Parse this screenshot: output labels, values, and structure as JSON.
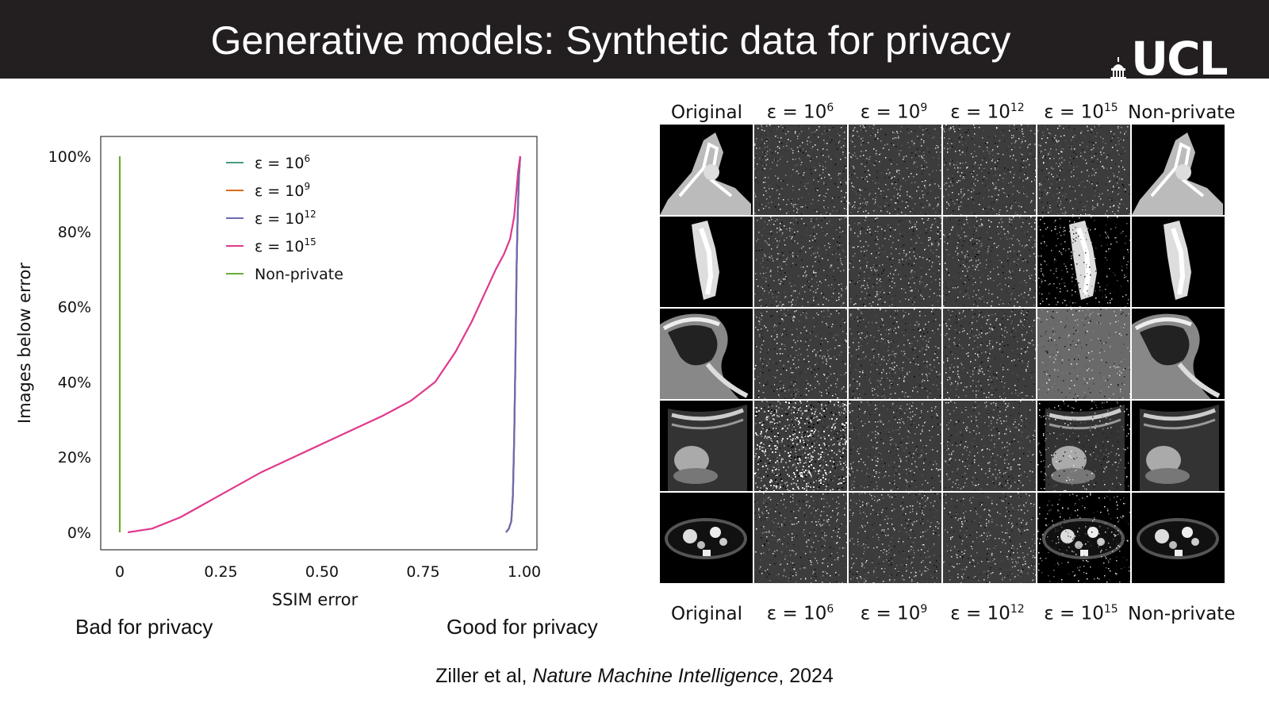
{
  "slide": {
    "title": "Generative models: Synthetic data for privacy",
    "logo_text": "UCL",
    "bad_label": "Bad for privacy",
    "good_label": "Good for privacy",
    "citation_authors": "Ziller et al, ",
    "citation_journal": "Nature Machine Intelligence",
    "citation_year": ", 2024"
  },
  "chart_data": {
    "type": "line",
    "xlabel": "SSIM error",
    "ylabel": "Images below error",
    "xlim": [
      0,
      1.0
    ],
    "ylim": [
      0,
      100
    ],
    "xticks": [
      0,
      0.25,
      0.5,
      0.75,
      1.0
    ],
    "xtick_labels": [
      "0",
      "0.25",
      "0.50",
      "0.75",
      "1.00"
    ],
    "yticks": [
      0,
      20,
      40,
      60,
      80,
      100
    ],
    "ytick_labels": [
      "0%",
      "20%",
      "40%",
      "60%",
      "80%",
      "100%"
    ],
    "legend_position": "top-center",
    "series": [
      {
        "name_base": "ε = 10",
        "name_exp": "6",
        "color": "#4a9a7e",
        "x": [
          0.955,
          0.962,
          0.968,
          0.972,
          0.975,
          0.978,
          0.981,
          0.984,
          0.987,
          0.99
        ],
        "y": [
          0,
          1,
          3,
          10,
          25,
          45,
          70,
          85,
          95,
          100
        ]
      },
      {
        "name_base": "ε = 10",
        "name_exp": "9",
        "color": "#e06a1b",
        "x": [
          0.955,
          0.962,
          0.968,
          0.972,
          0.975,
          0.978,
          0.981,
          0.984,
          0.987,
          0.99
        ],
        "y": [
          0,
          1,
          3,
          10,
          25,
          45,
          70,
          85,
          95,
          100
        ]
      },
      {
        "name_base": "ε = 10",
        "name_exp": "12",
        "color": "#6b6bb5",
        "x": [
          0.955,
          0.962,
          0.968,
          0.972,
          0.975,
          0.978,
          0.981,
          0.984,
          0.987,
          0.99
        ],
        "y": [
          0,
          1,
          3,
          10,
          25,
          45,
          70,
          85,
          95,
          100
        ]
      },
      {
        "name_base": "ε = 10",
        "name_exp": "15",
        "color": "#e0388c",
        "x": [
          0.02,
          0.08,
          0.15,
          0.25,
          0.35,
          0.45,
          0.55,
          0.65,
          0.72,
          0.78,
          0.83,
          0.87,
          0.9,
          0.93,
          0.95,
          0.965,
          0.975,
          0.98,
          0.985,
          0.99
        ],
        "y": [
          0,
          1,
          4,
          10,
          16,
          21,
          26,
          31,
          35,
          40,
          48,
          56,
          63,
          70,
          74,
          78,
          84,
          90,
          96,
          100
        ]
      },
      {
        "name_base": "Non-private",
        "name_exp": "",
        "color": "#6aab34",
        "x": [
          0.0,
          0.0
        ],
        "y": [
          0,
          100
        ]
      }
    ]
  },
  "figure_grid": {
    "column_headers": [
      {
        "base": "Original",
        "exp": ""
      },
      {
        "base": "ε = 10",
        "exp": "6"
      },
      {
        "base": "ε = 10",
        "exp": "9"
      },
      {
        "base": "ε = 10",
        "exp": "12"
      },
      {
        "base": "ε = 10",
        "exp": "15"
      },
      {
        "base": "Non-private",
        "exp": ""
      }
    ],
    "rows": [
      {
        "anatomy": "ankle",
        "cells": [
          "image",
          "noise",
          "noise",
          "noise",
          "noise",
          "image"
        ]
      },
      {
        "anatomy": "spine",
        "cells": [
          "image",
          "noise",
          "noise",
          "noise",
          "noisy-image",
          "image"
        ]
      },
      {
        "anatomy": "knee",
        "cells": [
          "image",
          "noise",
          "noise",
          "noise",
          "noise-light",
          "image"
        ]
      },
      {
        "anatomy": "ultrasound",
        "cells": [
          "image",
          "noise-strong",
          "noise",
          "noise",
          "noisy-image",
          "image"
        ]
      },
      {
        "anatomy": "abdomen-ct",
        "cells": [
          "image",
          "noise",
          "noise",
          "noise",
          "noisy-image",
          "image"
        ]
      }
    ]
  }
}
